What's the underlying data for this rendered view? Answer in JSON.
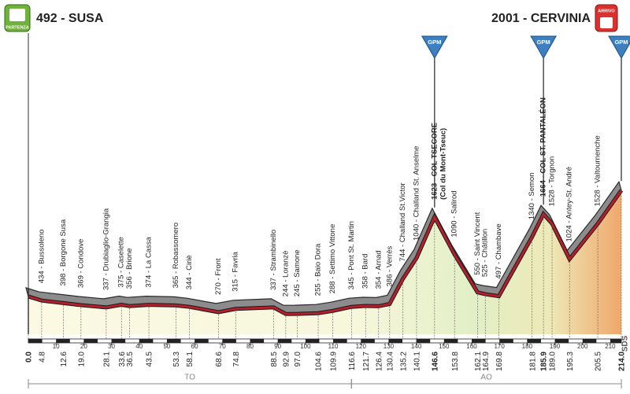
{
  "chart_data": {
    "type": "elevation_profile",
    "start": "492 - SUSA",
    "finish": "2001 - CERVINIA",
    "start_badge": "PARTENZA",
    "finish_badge": "ARRIVO",
    "side_label": "SDS",
    "xlim": [
      0,
      214.0
    ],
    "ylim": [
      0,
      2300
    ],
    "xticks": [
      10,
      20,
      30,
      40,
      50,
      60,
      70,
      80,
      90,
      100,
      110,
      120,
      130,
      140,
      150,
      160,
      170,
      180,
      190,
      200,
      210
    ],
    "points": [
      {
        "km": 0,
        "km_label": "0.0",
        "alt": 492,
        "label": null,
        "bold": true
      },
      {
        "km": 4.8,
        "km_label": "4.8",
        "alt": 434,
        "label": "434 - Bussoleno"
      },
      {
        "km": 12.6,
        "km_label": "12.6",
        "alt": 398,
        "label": "398 - Borgone Susa"
      },
      {
        "km": 19.0,
        "km_label": "19.0",
        "alt": 369,
        "label": "369 - Condove"
      },
      {
        "km": 28.1,
        "km_label": "28.1",
        "alt": 337,
        "label": "337 - Drubiaglio-Grangia"
      },
      {
        "km": 33.6,
        "km_label": "33.6",
        "alt": 375,
        "label": "375 - Caselette"
      },
      {
        "km": 36.5,
        "km_label": "36.5",
        "alt": 356,
        "label": "356 - Brione"
      },
      {
        "km": 43.5,
        "km_label": "43.5",
        "alt": 374,
        "label": "374 - La Cassa"
      },
      {
        "km": 53.3,
        "km_label": "53.3",
        "alt": 365,
        "label": "365 - Robassomero"
      },
      {
        "km": 58.1,
        "km_label": "58.1",
        "alt": 344,
        "label": "344 - Ciriè"
      },
      {
        "km": 68.6,
        "km_label": "68.6",
        "alt": 270,
        "label": "270 - Front"
      },
      {
        "km": 74.8,
        "km_label": "74.8",
        "alt": 315,
        "label": "315 - Favria"
      },
      {
        "km": 88.5,
        "km_label": "88.5",
        "alt": 337,
        "label": "337 - Strambinello"
      },
      {
        "km": 92.9,
        "km_label": "92.9",
        "alt": 244,
        "label": "244 - Loranzè"
      },
      {
        "km": 97.0,
        "km_label": "97.0",
        "alt": 245,
        "label": "245 - Samone"
      },
      {
        "km": 104.6,
        "km_label": "104.6",
        "alt": 255,
        "label": "255 - Baio Dora"
      },
      {
        "km": 109.9,
        "km_label": "109.9",
        "alt": 288,
        "label": "288 - Settimo Vittone"
      },
      {
        "km": 116.6,
        "km_label": "116.6",
        "alt": 345,
        "label": "345 - Pont St. Martin"
      },
      {
        "km": 121.7,
        "km_label": "121.7",
        "alt": 358,
        "label": "358 - Bard"
      },
      {
        "km": 126.4,
        "km_label": "126.4",
        "alt": 354,
        "label": "354 - Arnad"
      },
      {
        "km": 130.4,
        "km_label": "130.4",
        "alt": 386,
        "label": "386 - Verrès"
      },
      {
        "km": 135.2,
        "km_label": "135.2",
        "alt": 744,
        "label": "744 - Challand St.Victor"
      },
      {
        "km": 140.1,
        "km_label": "140.1",
        "alt": 1040,
        "label": "1040 - Challand St. Anselme"
      },
      {
        "km": 146.6,
        "km_label": "146.6",
        "alt": 1623,
        "label": "1623 - COL TSECORE",
        "note": "(Col du Mont-Tseuc)",
        "bold": true
      },
      {
        "km": 153.8,
        "km_label": "153.8",
        "alt": 1090,
        "label": "1090 - Salirod"
      },
      {
        "km": 162.1,
        "km_label": "162.1",
        "alt": 550,
        "label": "550 - Saint Vincent"
      },
      {
        "km": 164.9,
        "km_label": "164.9",
        "alt": 525,
        "label": "525 - Châtillon"
      },
      {
        "km": 169.8,
        "km_label": "169.8",
        "alt": 497,
        "label": "497 - Chambave"
      },
      {
        "km": 181.8,
        "km_label": "181.8",
        "alt": 1340,
        "label": "1340 - Semon"
      },
      {
        "km": 185.9,
        "km_label": "185.9",
        "alt": 1664,
        "label": "1664 - COL ST. PANTALÉON",
        "bold": true
      },
      {
        "km": 189.0,
        "km_label": "189.0",
        "alt": 1528,
        "label": "1528 - Torgnon"
      },
      {
        "km": 195.3,
        "km_label": "195.3",
        "alt": 1024,
        "label": "1024 - Antey-St. André"
      },
      {
        "km": 205.5,
        "km_label": "205.5",
        "alt": 1528,
        "label": "1528 - Valtournenche"
      },
      {
        "km": 214.0,
        "km_label": "214.0",
        "alt": 2001,
        "label": null,
        "bold": true
      }
    ],
    "gpm": [
      {
        "km": 146.6,
        "alt": 1623,
        "label": "GPM"
      },
      {
        "km": 185.9,
        "alt": 1664,
        "label": "GPM"
      },
      {
        "km": 214.0,
        "alt": 2001,
        "label": "GPM"
      }
    ],
    "regions": [
      {
        "name": "TO",
        "from": 0,
        "to": 116.6
      },
      {
        "name": "AO",
        "from": 116.6,
        "to": 214.0
      }
    ],
    "line_color": "#b3202c",
    "band_color": "#8c8c8c"
  }
}
